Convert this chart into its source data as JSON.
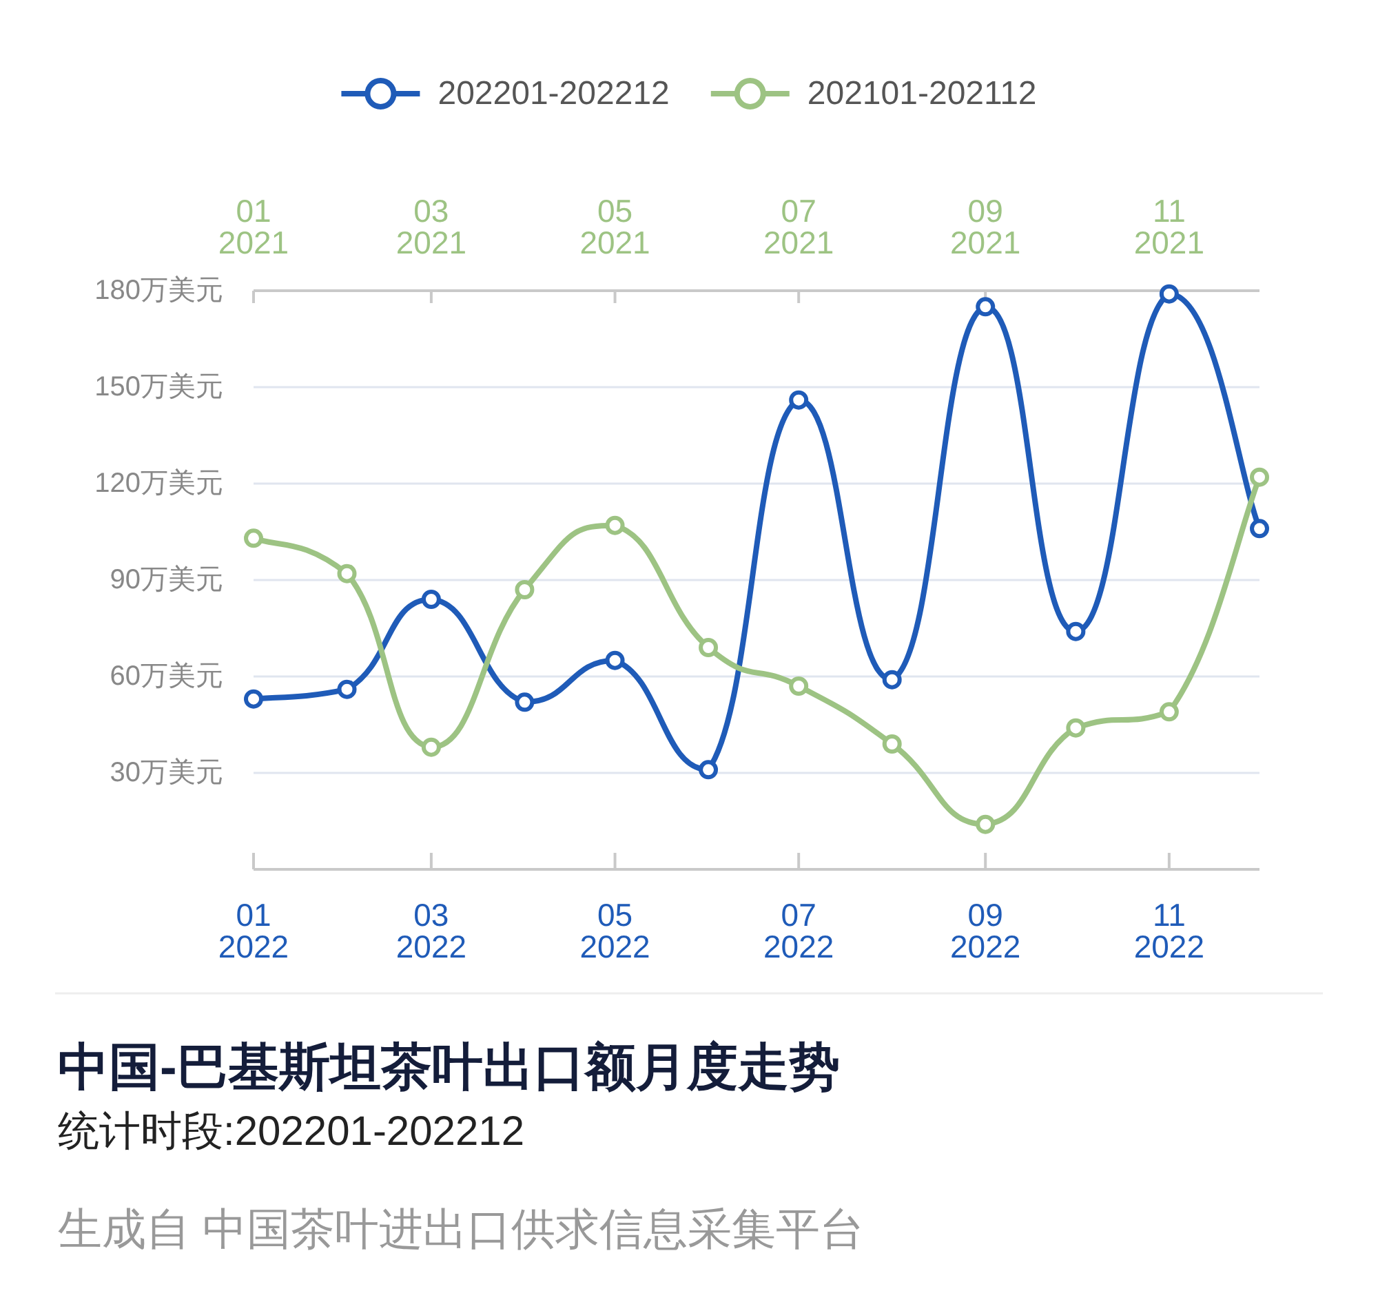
{
  "chart_data": {
    "type": "line",
    "title": "中国-巴基斯坦茶叶出口额月度走势",
    "subtitle": "统计时段:202201-202212",
    "annotations": [
      "生成自 中国茶叶进出口供求信息采集平台"
    ],
    "xlim": [
      "2022-01",
      "2022-12"
    ],
    "xticks": [
      {
        "value": "2022-01",
        "label": "01\n2022"
      },
      {
        "value": "2022-03",
        "label": "03\n2022"
      },
      {
        "value": "2022-05",
        "label": "05\n2022"
      },
      {
        "value": "2022-07",
        "label": "07\n2022"
      },
      {
        "value": "2022-09",
        "label": "09\n2022"
      },
      {
        "value": "2022-11",
        "label": "11\n2022"
      }
    ],
    "x2lim": [
      "2021-01",
      "2021-12"
    ],
    "x2ticks": [
      {
        "value": "2021-01",
        "label": "01\n2021"
      },
      {
        "value": "2021-03",
        "label": "03\n2021"
      },
      {
        "value": "2021-05",
        "label": "05\n2021"
      },
      {
        "value": "2021-07",
        "label": "07\n2021"
      },
      {
        "value": "2021-09",
        "label": "09\n2021"
      },
      {
        "value": "2021-11",
        "label": "11\n2021"
      }
    ],
    "ylim": [
      0,
      180
    ],
    "yticks": [
      {
        "value": 30,
        "label": "30万美元"
      },
      {
        "value": 60,
        "label": "60万美元"
      },
      {
        "value": 90,
        "label": "90万美元"
      },
      {
        "value": 120,
        "label": "120万美元"
      },
      {
        "value": 150,
        "label": "150万美元"
      },
      {
        "value": 180,
        "label": "180万美元"
      }
    ],
    "grid": "y",
    "legend": "top",
    "marker": "circle",
    "line_style": "solid",
    "series": [
      {
        "name": "202201-202212",
        "color": "#1f5bb8",
        "x": [
          "2022-01",
          "2022-02",
          "2022-03",
          "2022-04",
          "2022-05",
          "2022-06",
          "2022-07",
          "2022-08",
          "2022-09",
          "2022-10",
          "2022-11",
          "2022-12"
        ],
        "values": [
          53,
          56,
          84,
          52,
          65,
          31,
          146,
          59,
          175,
          74,
          179,
          106
        ]
      },
      {
        "name": "202101-202112",
        "color": "#9dc383",
        "axis": "x2",
        "x": [
          "2021-01",
          "2021-02",
          "2021-03",
          "2021-04",
          "2021-05",
          "2021-06",
          "2021-07",
          "2021-08",
          "2021-09",
          "2021-10",
          "2021-11",
          "2021-12"
        ],
        "values": [
          103,
          92,
          38,
          87,
          107,
          69,
          57,
          39,
          14,
          44,
          49,
          122
        ]
      }
    ]
  }
}
